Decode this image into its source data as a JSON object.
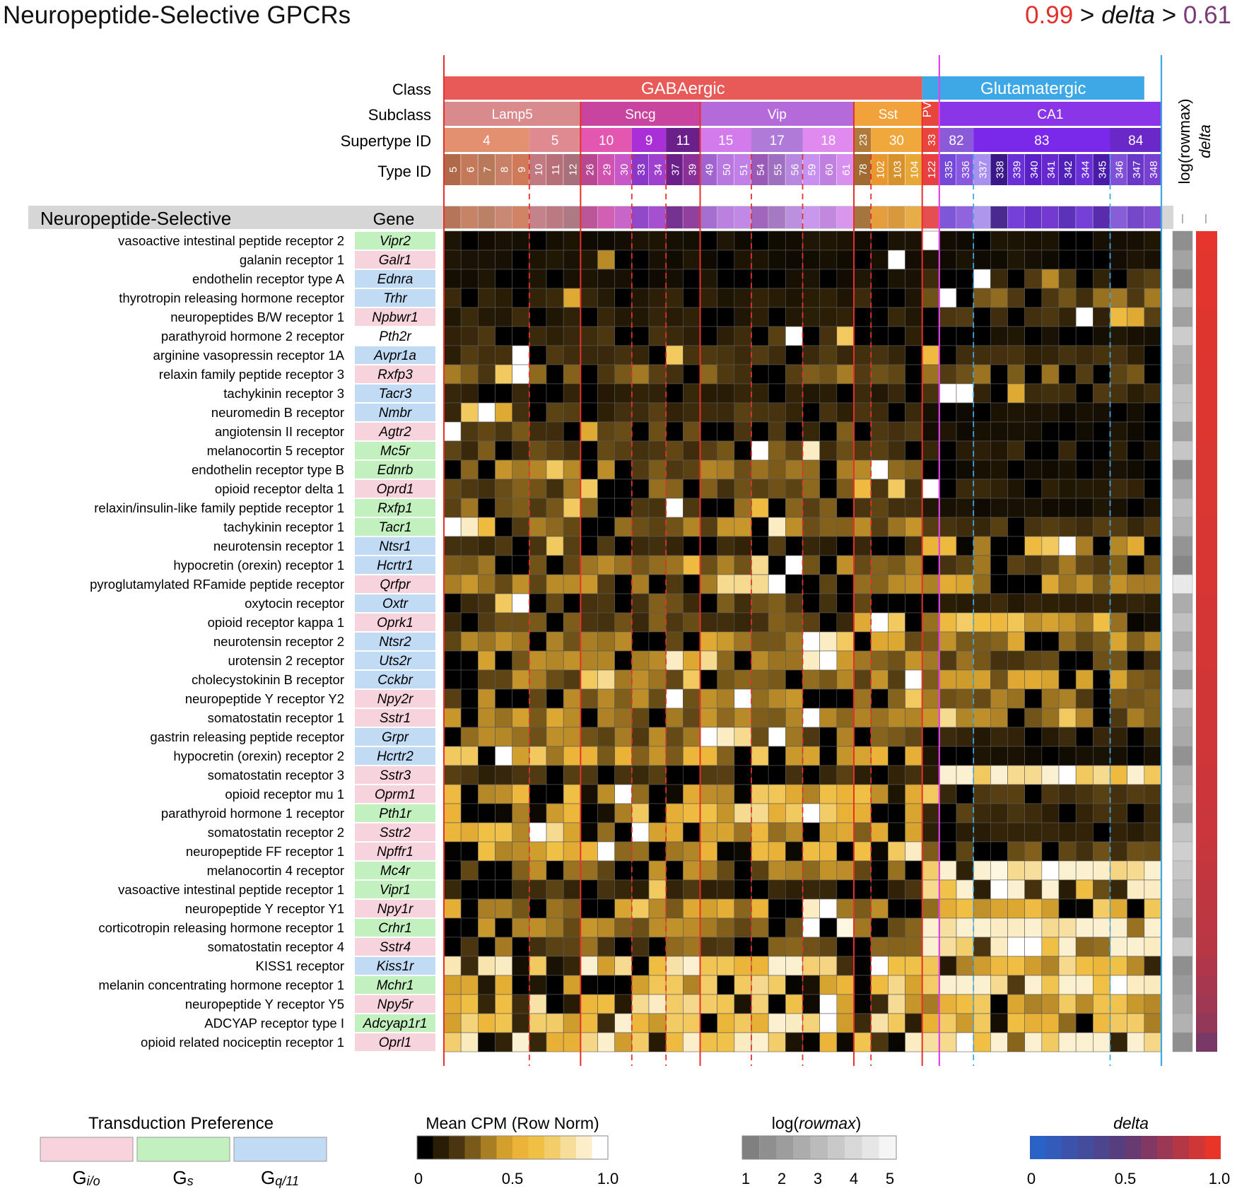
{
  "title": "Neuropeptide-Selective GPCRs",
  "delta_range": {
    "hi": "0.99",
    "mid": "delta",
    "lo": "0.61"
  },
  "chart_data": {
    "type": "heatmap",
    "title": "Neuropeptide-Selective GPCRs",
    "header_labels": {
      "class": "Class",
      "subclass": "Subclass",
      "supertype": "Supertype ID",
      "type": "Type ID",
      "gene": "Gene",
      "group": "Neuropeptide-Selective",
      "rowmax_col": "log(rowmax)",
      "delta_col": "delta"
    },
    "classes": [
      {
        "label": "GABAergic",
        "span": 28,
        "color": "#e85a58"
      },
      {
        "label": "Glutamatergic",
        "span": 13,
        "color": "#3ea8e6"
      }
    ],
    "subclasses": [
      {
        "label": "Lamp5",
        "span": 8,
        "color": "#d98a8c"
      },
      {
        "label": "Sncg",
        "span": 7,
        "color": "#c9449f"
      },
      {
        "label": "Vip",
        "span": 9,
        "color": "#b46ad8"
      },
      {
        "label": "Sst",
        "span": 4,
        "color": "#f2a23a"
      },
      {
        "label": "PV",
        "span": 1,
        "color": "#e8453c"
      },
      {
        "label": "CA1",
        "span": 13,
        "color": "#8a35e8"
      }
    ],
    "supertypes": [
      {
        "label": "4",
        "span": 5,
        "color": "#e39070"
      },
      {
        "label": "5",
        "span": 3,
        "color": "#de8a90"
      },
      {
        "label": "10",
        "span": 3,
        "color": "#e357b0"
      },
      {
        "label": "9",
        "span": 2,
        "color": "#a92fd6"
      },
      {
        "label": "11",
        "span": 2,
        "color": "#6a1f8a"
      },
      {
        "label": "15",
        "span": 3,
        "color": "#d37aec"
      },
      {
        "label": "17",
        "span": 3,
        "color": "#b07ad8"
      },
      {
        "label": "18",
        "span": 3,
        "color": "#e08af0"
      },
      {
        "label": "23",
        "span": 1,
        "color": "#b07a3a"
      },
      {
        "label": "30",
        "span": 3,
        "color": "#f0a83c"
      },
      {
        "label": "33",
        "span": 1,
        "color": "#e8453c"
      },
      {
        "label": "82",
        "span": 2,
        "color": "#8a5ad8"
      },
      {
        "label": "83",
        "span": 8,
        "color": "#7a28ea"
      },
      {
        "label": "84",
        "span": 3,
        "color": "#6a28c8"
      }
    ],
    "types": [
      "5",
      "6",
      "7",
      "8",
      "9",
      "10",
      "11",
      "12",
      "26",
      "29",
      "30",
      "33",
      "34",
      "37",
      "39",
      "49",
      "50",
      "51",
      "54",
      "55",
      "56",
      "59",
      "60",
      "61",
      "78",
      "102",
      "103",
      "104",
      "122",
      "335",
      "336",
      "337",
      "338",
      "339",
      "340",
      "341",
      "342",
      "344",
      "345",
      "346",
      "347",
      "348"
    ],
    "type_colors": [
      "#b06a4a",
      "#c47a5a",
      "#b8785a",
      "#c88068",
      "#d07a5a",
      "#c27a82",
      "#b87078",
      "#a8707a",
      "#b84892",
      "#d053b0",
      "#c858c8",
      "#8a38c8",
      "#a040d0",
      "#6a2088",
      "#8a3098",
      "#a064d0",
      "#b878e0",
      "#c080e8",
      "#9a5ab8",
      "#a070c0",
      "#b888e0",
      "#c890f0",
      "#c080e0",
      "#d890f0",
      "#a06a30",
      "#e8982c",
      "#d8922c",
      "#e8a838",
      "#e84040",
      "#7448d8",
      "#8858e0",
      "#a890f0",
      "#3a1888",
      "#6a30d8",
      "#5a20c8",
      "#6828d0",
      "#5020b8",
      "#6a30d8",
      "#4a1aa8",
      "#8050d8",
      "#6a38c8",
      "#7840d0"
    ],
    "genes": [
      {
        "gene": "Vipr2",
        "name": "vasoactive intestinal peptide receptor 2",
        "g": "s"
      },
      {
        "gene": "Galr1",
        "name": "galanin receptor 1",
        "g": "io"
      },
      {
        "gene": "Ednra",
        "name": "endothelin receptor type A",
        "g": "q"
      },
      {
        "gene": "Trhr",
        "name": "thyrotropin releasing hormone receptor",
        "g": "q"
      },
      {
        "gene": "Npbwr1",
        "name": "neuropeptides B/W receptor 1",
        "g": "io"
      },
      {
        "gene": "Pth2r",
        "name": "parathyroid hormone 2 receptor",
        "g": "none"
      },
      {
        "gene": "Avpr1a",
        "name": "arginine vasopressin receptor 1A",
        "g": "q"
      },
      {
        "gene": "Rxfp3",
        "name": "relaxin family peptide receptor 3",
        "g": "io"
      },
      {
        "gene": "Tacr3",
        "name": "tachykinin receptor 3",
        "g": "q"
      },
      {
        "gene": "Nmbr",
        "name": "neuromedin B receptor",
        "g": "q"
      },
      {
        "gene": "Agtr2",
        "name": "angiotensin II receptor",
        "g": "io"
      },
      {
        "gene": "Mc5r",
        "name": "melanocortin 5 receptor",
        "g": "s"
      },
      {
        "gene": "Ednrb",
        "name": "endothelin receptor type B",
        "g": "s"
      },
      {
        "gene": "Oprd1",
        "name": "opioid receptor delta 1",
        "g": "io"
      },
      {
        "gene": "Rxfp1",
        "name": "relaxin/insulin-like family peptide receptor 1",
        "g": "s"
      },
      {
        "gene": "Tacr1",
        "name": "tachykinin receptor 1",
        "g": "s"
      },
      {
        "gene": "Ntsr1",
        "name": "neurotensin receptor 1",
        "g": "q"
      },
      {
        "gene": "Hcrtr1",
        "name": "hypocretin (orexin) receptor 1",
        "g": "q"
      },
      {
        "gene": "Qrfpr",
        "name": "pyroglutamylated RFamide peptide receptor",
        "g": "io"
      },
      {
        "gene": "Oxtr",
        "name": "oxytocin receptor",
        "g": "q"
      },
      {
        "gene": "Oprk1",
        "name": "opioid receptor kappa 1",
        "g": "io"
      },
      {
        "gene": "Ntsr2",
        "name": "neurotensin receptor 2",
        "g": "q"
      },
      {
        "gene": "Uts2r",
        "name": "urotensin 2 receptor",
        "g": "q"
      },
      {
        "gene": "Cckbr",
        "name": "cholecystokinin B receptor",
        "g": "q"
      },
      {
        "gene": "Npy2r",
        "name": "neuropeptide Y receptor Y2",
        "g": "io"
      },
      {
        "gene": "Sstr1",
        "name": "somatostatin receptor 1",
        "g": "io"
      },
      {
        "gene": "Grpr",
        "name": "gastrin releasing peptide receptor",
        "g": "q"
      },
      {
        "gene": "Hcrtr2",
        "name": "hypocretin (orexin) receptor 2",
        "g": "q"
      },
      {
        "gene": "Sstr3",
        "name": "somatostatin receptor 3",
        "g": "io"
      },
      {
        "gene": "Oprm1",
        "name": "opioid receptor mu 1",
        "g": "io"
      },
      {
        "gene": "Pth1r",
        "name": "parathyroid hormone 1 receptor",
        "g": "s"
      },
      {
        "gene": "Sstr2",
        "name": "somatostatin receptor 2",
        "g": "io"
      },
      {
        "gene": "Npffr1",
        "name": "neuropeptide FF receptor 1",
        "g": "io"
      },
      {
        "gene": "Mc4r",
        "name": "melanocortin 4 receptor",
        "g": "s"
      },
      {
        "gene": "Vipr1",
        "name": "vasoactive intestinal peptide receptor 1",
        "g": "s"
      },
      {
        "gene": "Npy1r",
        "name": "neuropeptide Y receptor Y1",
        "g": "io"
      },
      {
        "gene": "Crhr1",
        "name": "corticotropin releasing hormone receptor 1",
        "g": "s"
      },
      {
        "gene": "Sstr4",
        "name": "somatostatin receptor 4",
        "g": "io"
      },
      {
        "gene": "Kiss1r",
        "name": "KISS1 receptor",
        "g": "q"
      },
      {
        "gene": "Mchr1",
        "name": "melanin concentrating hormone receptor 1",
        "g": "s"
      },
      {
        "gene": "Npy5r",
        "name": "neuropeptide Y receptor Y5",
        "g": "io"
      },
      {
        "gene": "Adcyap1r1",
        "name": "ADCYAP receptor type I",
        "g": "s"
      },
      {
        "gene": "Oprl1",
        "name": "opioid related nociceptin receptor 1",
        "g": "io"
      }
    ],
    "hotspots": [
      [
        0,
        28,
        1.0
      ],
      [
        1,
        26,
        1.0
      ],
      [
        1,
        9,
        0.4
      ],
      [
        2,
        31,
        1.0
      ],
      [
        2,
        35,
        0.4
      ],
      [
        3,
        29,
        1.0
      ],
      [
        3,
        7,
        0.5
      ],
      [
        4,
        37,
        1.0
      ],
      [
        4,
        39,
        0.6
      ],
      [
        4,
        40,
        0.5
      ],
      [
        5,
        20,
        1.0
      ],
      [
        5,
        23,
        0.7
      ],
      [
        6,
        4,
        1.0
      ],
      [
        6,
        13,
        0.7
      ],
      [
        6,
        28,
        0.6
      ],
      [
        7,
        4,
        1.0
      ],
      [
        7,
        3,
        0.7
      ],
      [
        8,
        29,
        1.0
      ],
      [
        8,
        30,
        1.0
      ],
      [
        8,
        33,
        0.5
      ],
      [
        9,
        2,
        1.0
      ],
      [
        9,
        1,
        0.7
      ],
      [
        9,
        3,
        0.5
      ],
      [
        10,
        0,
        1.0
      ],
      [
        10,
        8,
        0.5
      ],
      [
        11,
        18,
        1.0
      ],
      [
        11,
        21,
        0.9
      ],
      [
        12,
        6,
        0.7
      ],
      [
        12,
        25,
        1.0
      ],
      [
        13,
        8,
        0.7
      ],
      [
        13,
        24,
        0.6
      ],
      [
        13,
        26,
        0.7
      ],
      [
        13,
        28,
        1.0
      ],
      [
        14,
        13,
        1.0
      ],
      [
        14,
        7,
        0.7
      ],
      [
        14,
        18,
        0.6
      ],
      [
        15,
        0,
        1.0
      ],
      [
        15,
        1,
        0.9
      ],
      [
        15,
        2,
        0.6
      ],
      [
        15,
        19,
        0.9
      ],
      [
        16,
        6,
        0.7
      ],
      [
        16,
        34,
        0.6
      ],
      [
        16,
        35,
        0.7
      ],
      [
        16,
        36,
        1.0
      ],
      [
        17,
        20,
        1.0
      ],
      [
        17,
        18,
        0.8
      ],
      [
        17,
        14,
        0.6
      ],
      [
        18,
        17,
        0.8
      ],
      [
        18,
        16,
        0.8
      ],
      [
        18,
        19,
        1.0
      ],
      [
        18,
        18,
        0.8
      ],
      [
        19,
        3,
        0.7
      ],
      [
        19,
        4,
        1.0
      ],
      [
        20,
        24,
        0.5
      ],
      [
        20,
        25,
        1.0
      ],
      [
        20,
        26,
        0.7
      ],
      [
        21,
        21,
        1.0
      ],
      [
        21,
        22,
        0.9
      ],
      [
        21,
        23,
        0.7
      ],
      [
        22,
        13,
        0.9
      ],
      [
        22,
        15,
        0.8
      ],
      [
        22,
        22,
        1.0
      ],
      [
        22,
        21,
        0.9
      ],
      [
        23,
        27,
        1.0
      ],
      [
        23,
        9,
        0.8
      ],
      [
        23,
        8,
        0.7
      ],
      [
        23,
        14,
        0.7
      ],
      [
        24,
        13,
        1.0
      ],
      [
        24,
        17,
        1.0
      ],
      [
        24,
        27,
        0.7
      ],
      [
        25,
        21,
        1.0
      ],
      [
        25,
        29,
        0.8
      ],
      [
        25,
        36,
        0.7
      ],
      [
        26,
        15,
        1.0
      ],
      [
        26,
        16,
        0.9
      ],
      [
        26,
        17,
        0.8
      ],
      [
        26,
        19,
        1.0
      ],
      [
        27,
        3,
        1.0
      ],
      [
        27,
        0,
        0.7
      ],
      [
        27,
        1,
        0.7
      ],
      [
        27,
        5,
        0.7
      ],
      [
        27,
        18,
        0.7
      ],
      [
        28,
        36,
        1.0
      ],
      [
        28,
        33,
        0.8
      ],
      [
        28,
        34,
        0.8
      ],
      [
        28,
        38,
        0.8
      ],
      [
        28,
        31,
        0.7
      ],
      [
        28,
        37,
        0.7
      ],
      [
        29,
        10,
        1.0
      ],
      [
        29,
        0,
        0.6
      ],
      [
        29,
        28,
        0.7
      ],
      [
        30,
        21,
        1.0
      ],
      [
        30,
        17,
        0.8
      ],
      [
        30,
        18,
        0.8
      ],
      [
        30,
        20,
        0.7
      ],
      [
        31,
        5,
        1.0
      ],
      [
        31,
        6,
        0.8
      ],
      [
        31,
        11,
        1.0
      ],
      [
        32,
        9,
        1.0
      ],
      [
        32,
        27,
        0.9
      ],
      [
        32,
        26,
        0.7
      ],
      [
        33,
        32,
        0.95
      ],
      [
        33,
        35,
        1.0
      ],
      [
        33,
        33,
        0.8
      ],
      [
        33,
        40,
        0.8
      ],
      [
        34,
        32,
        1.0
      ],
      [
        34,
        40,
        0.9
      ],
      [
        34,
        41,
        0.9
      ],
      [
        34,
        12,
        0.7
      ],
      [
        35,
        22,
        1.0
      ],
      [
        35,
        21,
        0.9
      ],
      [
        35,
        11,
        0.7
      ],
      [
        36,
        21,
        1.0
      ],
      [
        36,
        23,
        0.95
      ],
      [
        36,
        32,
        0.9
      ],
      [
        36,
        33,
        0.9
      ],
      [
        37,
        33,
        1.0
      ],
      [
        37,
        34,
        1.0
      ],
      [
        37,
        32,
        0.9
      ],
      [
        37,
        41,
        0.9
      ],
      [
        38,
        25,
        1.0
      ],
      [
        38,
        10,
        0.8
      ],
      [
        38,
        5,
        0.7
      ],
      [
        39,
        39,
        1.0
      ],
      [
        39,
        40,
        0.9
      ],
      [
        39,
        32,
        0.8
      ],
      [
        40,
        22,
        1.0
      ],
      [
        40,
        12,
        0.9
      ],
      [
        40,
        11,
        0.8
      ],
      [
        41,
        22,
        1.0
      ],
      [
        41,
        14,
        0.7
      ],
      [
        42,
        30,
        1.0
      ],
      [
        42,
        27,
        0.9
      ],
      [
        42,
        29,
        0.8
      ]
    ],
    "glut_weight": [
      0.05,
      0.05,
      0.15,
      0.25,
      0.15,
      0.05,
      0.15,
      0.25,
      0.15,
      0.05,
      0.05,
      0.1,
      0.05,
      0.1,
      0.05,
      0.15,
      0.45,
      0.25,
      0.35,
      0.1,
      0.5,
      0.35,
      0.25,
      0.35,
      0.3,
      0.3,
      0.1,
      0.05,
      0.95,
      0.15,
      0.15,
      0.1,
      0.2,
      0.95,
      0.95,
      0.5,
      0.95,
      0.95,
      0.6,
      0.95,
      0.5,
      0.5,
      0.9
    ],
    "gaba_weight": [
      0.05,
      0.05,
      0.05,
      0.1,
      0.1,
      0.15,
      0.15,
      0.25,
      0.1,
      0.15,
      0.2,
      0.2,
      0.3,
      0.25,
      0.25,
      0.3,
      0.15,
      0.3,
      0.3,
      0.2,
      0.2,
      0.35,
      0.35,
      0.3,
      0.3,
      0.35,
      0.3,
      0.4,
      0.15,
      0.5,
      0.5,
      0.45,
      0.45,
      0.3,
      0.15,
      0.4,
      0.3,
      0.25,
      0.7,
      0.55,
      0.65,
      0.65,
      0.7
    ],
    "rowmax": [
      1.5,
      2.2,
      1.3,
      3.1,
      2.1,
      3.6,
      2.6,
      2.4,
      3.2,
      3.2,
      2.1,
      3.4,
      1.5,
      2.3,
      3.0,
      2.6,
      1.7,
      1.2,
      4.6,
      2.5,
      3.2,
      2.4,
      3.1,
      2.0,
      3.5,
      2.6,
      2.4,
      1.6,
      2.5,
      2.8,
      2.2,
      3.3,
      3.7,
      3.4,
      3.1,
      2.7,
      2.2,
      3.5,
      1.5,
      1.9,
      2.3,
      2.7,
      1.5
    ],
    "delta": [
      0.99,
      0.98,
      0.98,
      0.98,
      0.97,
      0.97,
      0.97,
      0.96,
      0.96,
      0.96,
      0.96,
      0.95,
      0.95,
      0.95,
      0.95,
      0.94,
      0.94,
      0.94,
      0.94,
      0.93,
      0.93,
      0.93,
      0.93,
      0.92,
      0.92,
      0.92,
      0.91,
      0.91,
      0.9,
      0.9,
      0.89,
      0.89,
      0.88,
      0.87,
      0.86,
      0.85,
      0.84,
      0.83,
      0.8,
      0.77,
      0.74,
      0.7,
      0.61
    ],
    "legends": {
      "transduction": {
        "title": "Transduction Preference",
        "items": [
          {
            "label": "G",
            "sub": "i/o",
            "color": "#f7d3dd"
          },
          {
            "label": "G",
            "sub": "s",
            "color": "#c3f0bf"
          },
          {
            "label": "G",
            "sub": "q/11",
            "color": "#c2dbf5"
          }
        ]
      },
      "cpm": {
        "title": "Mean CPM (Row Norm)",
        "ticks": [
          "0",
          "0.5",
          "1.0"
        ]
      },
      "rowmax": {
        "title": "log(rowmax)",
        "ticks": [
          "1",
          "2",
          "3",
          "4",
          "5"
        ]
      },
      "delta": {
        "title": "delta",
        "ticks": [
          "0",
          "0.5",
          "1.0"
        ]
      }
    }
  }
}
